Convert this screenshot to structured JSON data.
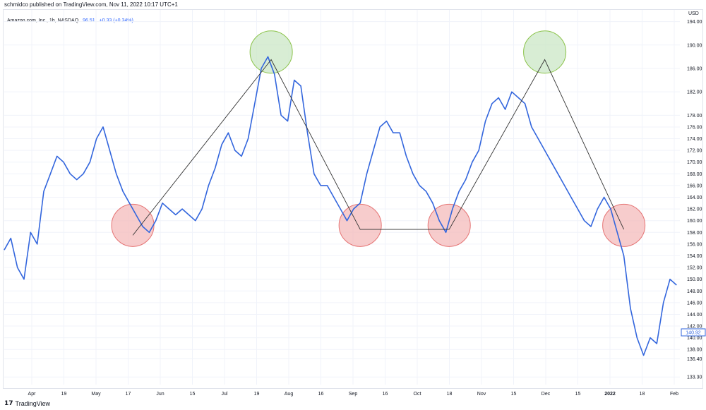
{
  "header": {
    "published_by": "schmidco published on TradingView.com, Nov 11, 2022 10:17 UTC+1"
  },
  "legend": {
    "symbol": "Amazon.com, Inc., 1h, NASDAQ",
    "value": "96.51",
    "change": "+0.33 (+0.34%)"
  },
  "axis": {
    "currency": "USD",
    "last_price_label": "140.92"
  },
  "footer": {
    "brand": "TradingView"
  },
  "colors": {
    "line": "#3366dd",
    "pattern": "#333333",
    "red_circle_fill": "#f4b6b6",
    "red_circle_stroke": "#e57373",
    "green_circle_fill": "#c7e6c2",
    "green_circle_stroke": "#8bc34a"
  },
  "chart_data": {
    "type": "line",
    "y_ticks": [
      "194.00",
      "190.00",
      "186.00",
      "182.00",
      "178.00",
      "176.00",
      "174.00",
      "172.00",
      "170.00",
      "168.00",
      "166.00",
      "164.00",
      "162.00",
      "160.00",
      "158.00",
      "156.00",
      "154.00",
      "152.00",
      "150.00",
      "148.00",
      "146.00",
      "144.00",
      "142.00",
      "140.00",
      "138.00",
      "136.40",
      "133.30"
    ],
    "x_ticks": [
      "Apr",
      "19",
      "May",
      "17",
      "Jun",
      "15",
      "Jul",
      "19",
      "Aug",
      "16",
      "Sep",
      "16",
      "Oct",
      "18",
      "Nov",
      "15",
      "Dec",
      "15",
      "2022",
      "18",
      "Feb"
    ],
    "series": [
      {
        "points": [
          [
            0,
            155
          ],
          [
            2,
            157
          ],
          [
            4,
            152
          ],
          [
            6,
            150
          ],
          [
            8,
            158
          ],
          [
            10,
            156
          ],
          [
            12,
            165
          ],
          [
            14,
            168
          ],
          [
            16,
            171
          ],
          [
            18,
            170
          ],
          [
            20,
            168
          ],
          [
            22,
            167
          ],
          [
            24,
            168
          ],
          [
            26,
            170
          ],
          [
            28,
            174
          ],
          [
            30,
            176
          ],
          [
            32,
            172
          ],
          [
            34,
            168
          ],
          [
            36,
            165
          ],
          [
            38,
            163
          ],
          [
            40,
            161
          ],
          [
            42,
            159
          ],
          [
            44,
            158
          ],
          [
            46,
            160
          ],
          [
            48,
            163
          ],
          [
            50,
            162
          ],
          [
            52,
            161
          ],
          [
            54,
            162
          ],
          [
            56,
            161
          ],
          [
            58,
            160
          ],
          [
            60,
            162
          ],
          [
            62,
            166
          ],
          [
            64,
            169
          ],
          [
            66,
            173
          ],
          [
            68,
            175
          ],
          [
            70,
            172
          ],
          [
            72,
            171
          ],
          [
            74,
            174
          ],
          [
            76,
            180
          ],
          [
            78,
            186
          ],
          [
            80,
            188
          ],
          [
            82,
            185
          ],
          [
            84,
            178
          ],
          [
            86,
            177
          ],
          [
            88,
            184
          ],
          [
            90,
            183
          ],
          [
            92,
            175
          ],
          [
            94,
            168
          ],
          [
            96,
            166
          ],
          [
            98,
            166
          ],
          [
            100,
            164
          ],
          [
            102,
            162
          ],
          [
            104,
            160
          ],
          [
            106,
            162
          ],
          [
            108,
            163
          ],
          [
            110,
            168
          ],
          [
            112,
            172
          ],
          [
            114,
            176
          ],
          [
            116,
            177
          ],
          [
            118,
            175
          ],
          [
            120,
            175
          ],
          [
            122,
            171
          ],
          [
            124,
            168
          ],
          [
            126,
            166
          ],
          [
            128,
            165
          ],
          [
            130,
            163
          ],
          [
            132,
            160
          ],
          [
            134,
            158
          ],
          [
            136,
            162
          ],
          [
            138,
            165
          ],
          [
            140,
            167
          ],
          [
            142,
            170
          ],
          [
            144,
            172
          ],
          [
            146,
            177
          ],
          [
            148,
            180
          ],
          [
            150,
            181
          ],
          [
            152,
            179
          ],
          [
            154,
            182
          ],
          [
            156,
            181
          ],
          [
            158,
            180
          ],
          [
            160,
            176
          ],
          [
            162,
            174
          ],
          [
            164,
            172
          ],
          [
            166,
            170
          ],
          [
            168,
            168
          ],
          [
            170,
            166
          ],
          [
            172,
            164
          ],
          [
            174,
            162
          ],
          [
            176,
            160
          ],
          [
            178,
            159
          ],
          [
            180,
            162
          ],
          [
            182,
            164
          ],
          [
            184,
            162
          ],
          [
            186,
            158
          ],
          [
            188,
            154
          ],
          [
            190,
            145
          ],
          [
            192,
            140
          ],
          [
            194,
            137
          ],
          [
            196,
            140
          ],
          [
            198,
            139
          ],
          [
            200,
            146
          ],
          [
            202,
            150
          ],
          [
            204,
            149
          ]
        ],
        "x_note": "trading-hour index across the visible range",
        "y_unit": "USD"
      }
    ],
    "pattern": {
      "points": [
        [
          39,
          157.5
        ],
        [
          81,
          187.5
        ],
        [
          108,
          158.5
        ],
        [
          135,
          158.5
        ],
        [
          164,
          187.5
        ],
        [
          188,
          158.5
        ]
      ],
      "troughs": [
        [
          39,
          159.2
        ],
        [
          108,
          159.2
        ],
        [
          135,
          159.2
        ],
        [
          188,
          159.2
        ]
      ],
      "peaks": [
        [
          81,
          188.8
        ],
        [
          164,
          188.8
        ]
      ]
    }
  }
}
